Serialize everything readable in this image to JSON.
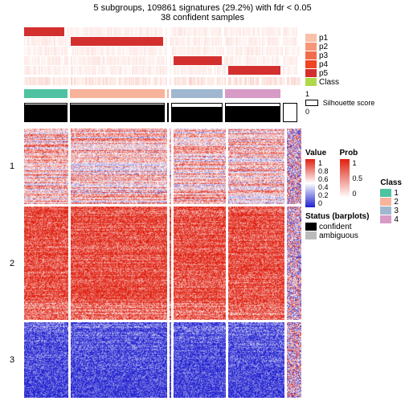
{
  "title": "5 subgroups, 109861 signatures (29.2%) with fdr < 0.05",
  "subtitle": "38 confident samples",
  "columns": {
    "count": 5,
    "widths": [
      55,
      120,
      2,
      65,
      70,
      18
    ],
    "gap": 3
  },
  "pTracks": {
    "labels": [
      "p1",
      "p2",
      "p3",
      "p4",
      "p5"
    ],
    "colors": [
      "#f8c1a8",
      "#f69679",
      "#f26d4c",
      "#ee4423",
      "#d32f2f"
    ],
    "activeCol": [
      0,
      1,
      2,
      3,
      4,
      5
    ],
    "rows": 5
  },
  "classTrack": {
    "label": "Class",
    "swatch": "#b0d94a",
    "colors": [
      "#4fc3a1",
      "#f8b39b",
      "#f8b39b",
      "#9fb8d0",
      "#d89ac6",
      "#ffffff"
    ]
  },
  "silhouette": {
    "label": "Silhouette score",
    "tick0": "0",
    "tick1": "1",
    "fills": [
      0.96,
      0.94,
      0.9,
      0.85,
      0.88,
      0
    ]
  },
  "heatmap": {
    "rowGroups": [
      {
        "label": "1",
        "rows": 40,
        "redBias": 0.55,
        "pattern": "mixed"
      },
      {
        "label": "2",
        "rows": 60,
        "redBias": 0.92,
        "pattern": "red"
      },
      {
        "label": "3",
        "rows": 40,
        "redBias": 0.08,
        "pattern": "blue"
      }
    ],
    "totalHeight": 330
  },
  "legends": {
    "value": {
      "title": "Value",
      "ticks": [
        "1",
        "0.8",
        "0.6",
        "0.4",
        "0.2",
        "0"
      ]
    },
    "prob": {
      "title": "Prob",
      "ticks": [
        "1",
        "0.5",
        "0"
      ]
    },
    "status": {
      "title": "Status (barplots)",
      "items": [
        {
          "c": "#000",
          "t": "confident"
        },
        {
          "c": "#bbb",
          "t": "ambiguous"
        }
      ]
    },
    "class": {
      "title": "Class",
      "items": [
        {
          "c": "#4fc3a1",
          "t": "1"
        },
        {
          "c": "#f8b39b",
          "t": "2"
        },
        {
          "c": "#9fb8d0",
          "t": "3"
        },
        {
          "c": "#d89ac6",
          "t": "4"
        }
      ]
    }
  },
  "colormap": {
    "low": "#2020d0",
    "mid": "#ffffff",
    "high": "#e02010"
  }
}
